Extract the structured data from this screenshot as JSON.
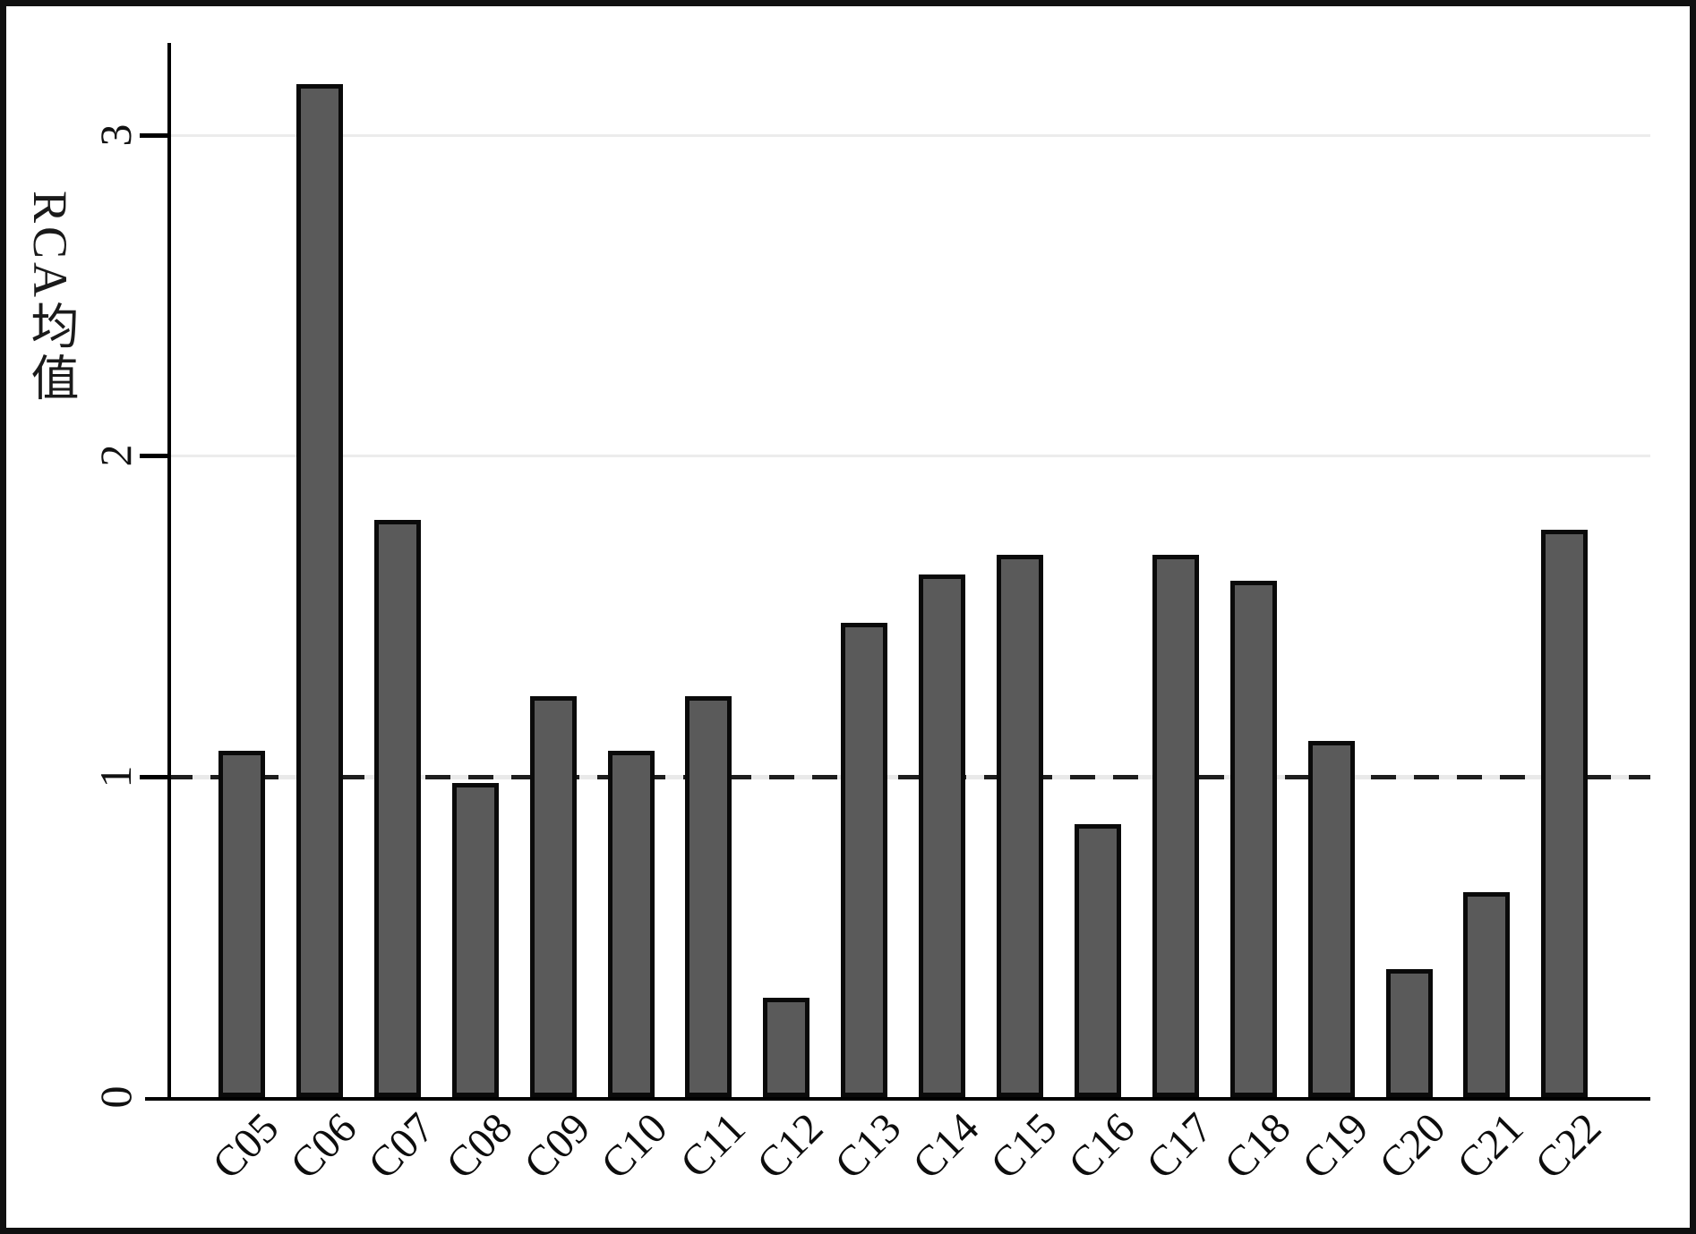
{
  "figure": {
    "background_color": "#ffffff",
    "frame_color": "#101010",
    "y_axis": {
      "title": "RCA均值",
      "tick_labels": [
        "0",
        "1",
        "2",
        "3"
      ]
    },
    "reference_line": {
      "value": 1,
      "style": "dashed",
      "color": "#1e1e1e"
    },
    "gridline_color": "#ececec",
    "bar_fill_color": "#5a5a5a",
    "bar_border_color": "#0a0a0a"
  },
  "chart_data": {
    "type": "bar",
    "title": "",
    "xlabel": "",
    "ylabel": "RCA均值",
    "categories": [
      "C05",
      "C06",
      "C07",
      "C08",
      "C09",
      "C10",
      "C11",
      "C12",
      "C13",
      "C14",
      "C15",
      "C16",
      "C17",
      "C18",
      "C19",
      "C20",
      "C21",
      "C22"
    ],
    "values": [
      1.08,
      3.16,
      1.8,
      0.98,
      1.25,
      1.08,
      1.25,
      0.31,
      1.48,
      1.63,
      1.69,
      0.85,
      1.69,
      1.61,
      1.11,
      0.4,
      0.64,
      1.77
    ],
    "yticks": [
      0,
      1,
      2,
      3
    ],
    "ylim": [
      0,
      3.3
    ],
    "grid": "horizontal gridlines at y=2 and y=3, dashed reference line at y=1",
    "legend": "none"
  }
}
